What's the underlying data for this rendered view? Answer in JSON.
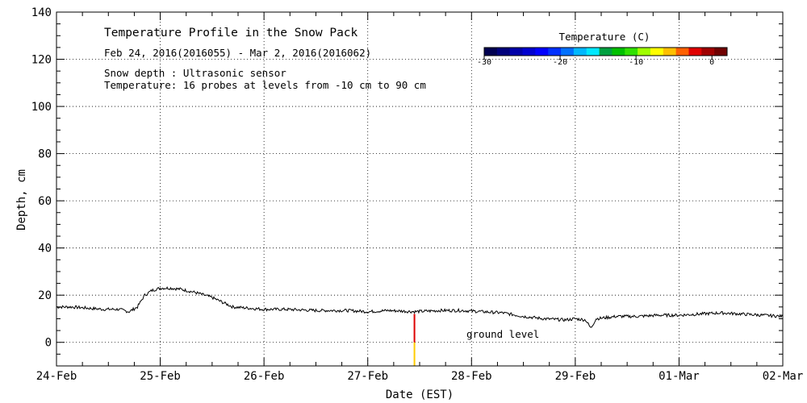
{
  "chart_data": {
    "type": "line",
    "title": "Temperature Profile in the Snow Pack",
    "subtitle": "Feb 24, 2016(2016055) - Mar  2, 2016(2016062)",
    "notes": [
      "Snow depth : Ultrasonic sensor",
      "Temperature: 16 probes at levels from -10 cm to 90 cm"
    ],
    "xlabel": "Date (EST)",
    "ylabel": "Depth, cm",
    "xlim": [
      0,
      7
    ],
    "ylim": [
      -10,
      140
    ],
    "x_tick_labels": [
      "24-Feb",
      "25-Feb",
      "26-Feb",
      "27-Feb",
      "28-Feb",
      "29-Feb",
      "01-Mar",
      "02-Mar"
    ],
    "y_ticks": [
      0,
      20,
      40,
      60,
      80,
      100,
      120,
      140
    ],
    "grid": true,
    "annotation": "ground level",
    "colorbar": {
      "title": "Temperature (C)",
      "range": [
        -30,
        2
      ],
      "tick_values": [
        -30,
        -20,
        -10,
        0
      ],
      "tick_labels": [
        "-30",
        "-20",
        "-10",
        "0"
      ],
      "colors": [
        "#000050",
        "#00007a",
        "#0000a8",
        "#0000d0",
        "#0000ff",
        "#0030ff",
        "#0070ff",
        "#00b8ff",
        "#00e8ff",
        "#00a040",
        "#00c000",
        "#30e000",
        "#a0ff00",
        "#ffff00",
        "#ffc000",
        "#ff6000",
        "#e00000",
        "#a00000",
        "#700000"
      ]
    },
    "series": [
      {
        "name": "Snow depth",
        "color": "#000000",
        "x": [
          0,
          0.15,
          0.3,
          0.45,
          0.6,
          0.7,
          0.78,
          0.85,
          0.92,
          1.0,
          1.1,
          1.2,
          1.35,
          1.5,
          1.6,
          1.7,
          1.85,
          2.0,
          2.2,
          2.5,
          2.8,
          3.0,
          3.2,
          3.45,
          3.7,
          3.9,
          4.1,
          4.3,
          4.5,
          4.7,
          4.9,
          5.0,
          5.1,
          5.15,
          5.2,
          5.4,
          5.6,
          5.8,
          6.0,
          6.2,
          6.4,
          6.6,
          6.8,
          7.0
        ],
        "y": [
          15,
          15,
          14.5,
          14,
          14,
          13,
          15,
          20,
          22,
          23,
          23,
          22.5,
          21,
          19,
          17,
          15,
          14.5,
          14,
          14,
          13.5,
          13.5,
          13,
          13.5,
          13,
          13.5,
          13.5,
          13,
          12.5,
          11,
          10,
          9.5,
          10,
          9.5,
          6,
          10,
          11,
          11,
          11.5,
          11.5,
          12,
          12.5,
          12,
          11.5,
          11
        ]
      },
      {
        "name": "Temperature probe (ground level to snow surface)",
        "type": "vertical-bar",
        "x": 3.45,
        "segments": [
          {
            "from": -10,
            "to": 0,
            "color": "#ffcc00"
          },
          {
            "from": 0,
            "to": 12,
            "color": "#dd0000"
          }
        ]
      }
    ]
  }
}
